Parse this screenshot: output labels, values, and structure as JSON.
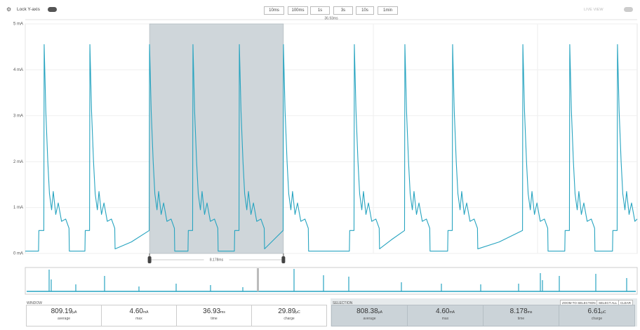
{
  "toolbar": {
    "lock_label": "Lock Y-axis",
    "zoom_buttons": [
      "10ms",
      "100ms",
      "1s",
      "3s",
      "10s",
      "1min"
    ],
    "live_view": "LIVE VIEW"
  },
  "chart_data": {
    "type": "line",
    "window_label": "36.93ms",
    "selection_label": "8.178ms",
    "color": "#27a4c0",
    "xlim": [
      0,
      36.93
    ],
    "ylim": [
      0,
      5
    ],
    "yticks": [
      {
        "value": 0,
        "label": "0 mA"
      },
      {
        "value": 1,
        "label": "1 mA"
      },
      {
        "value": 2,
        "label": "2 mA"
      },
      {
        "value": 3,
        "label": "3 mA"
      },
      {
        "value": 4,
        "label": "4 mA"
      },
      {
        "value": 5,
        "label": "5 mA"
      }
    ],
    "selection": [
      7.5,
      15.58
    ],
    "x": [
      0,
      0.8,
      0.82,
      1.12,
      1.14,
      1.24,
      1.36,
      1.46,
      1.59,
      1.69,
      1.84,
      1.99,
      2.19,
      2.44,
      2.64,
      2.66,
      3.6,
      3.62,
      3.88,
      3.9,
      4.0,
      4.12,
      4.22,
      4.35,
      4.45,
      4.6,
      4.75,
      4.95,
      5.2,
      5.4,
      5.42,
      6.4,
      7.48,
      7.5,
      7.6,
      7.72,
      7.82,
      7.95,
      8.05,
      8.2,
      8.35,
      8.55,
      8.8,
      9.0,
      9.02,
      9.82,
      9.84,
      10.1,
      10.12,
      10.22,
      10.34,
      10.44,
      10.57,
      10.67,
      10.82,
      10.97,
      11.17,
      11.42,
      11.62,
      11.64,
      12.62,
      12.64,
      12.9,
      12.92,
      13.02,
      13.14,
      13.24,
      13.37,
      13.47,
      13.62,
      13.77,
      13.97,
      14.22,
      14.42,
      14.44,
      15.0,
      15.56,
      15.58,
      15.68,
      15.8,
      15.9,
      16.03,
      16.13,
      16.28,
      16.43,
      16.63,
      16.88,
      17.08,
      17.1,
      19.56,
      19.58,
      19.84,
      19.86,
      19.96,
      20.08,
      20.18,
      20.31,
      20.41,
      20.56,
      20.71,
      20.91,
      21.16,
      21.36,
      21.38,
      22.1,
      22.89,
      22.91,
      23.01,
      23.13,
      23.23,
      23.36,
      23.46,
      23.61,
      23.76,
      23.96,
      24.21,
      24.41,
      24.43,
      25.49,
      25.51,
      25.77,
      25.79,
      25.89,
      26.01,
      26.11,
      26.24,
      26.34,
      26.49,
      26.64,
      26.84,
      27.09,
      27.29,
      27.31,
      28.6,
      30.01,
      30.03,
      30.13,
      30.25,
      30.35,
      30.48,
      30.58,
      30.73,
      30.88,
      31.08,
      31.33,
      31.53,
      31.55,
      32.56,
      32.58,
      32.84,
      32.86,
      32.96,
      33.08,
      33.18,
      33.31,
      33.41,
      33.56,
      33.71,
      33.91,
      34.16,
      34.36,
      34.38,
      35.44,
      35.46,
      35.72,
      35.74,
      35.84,
      35.96,
      36.06,
      36.19,
      36.29,
      36.44,
      36.59,
      36.79,
      36.93
    ],
    "values": [
      0.05,
      0.05,
      0.5,
      0.5,
      4.55,
      3.1,
      2.0,
      1.3,
      0.95,
      1.35,
      0.85,
      1.1,
      0.7,
      0.75,
      0.55,
      0.05,
      0.05,
      0.5,
      0.5,
      4.55,
      3.1,
      2.0,
      1.3,
      0.95,
      1.35,
      0.85,
      1.1,
      0.7,
      0.75,
      0.55,
      0.1,
      0.25,
      0.5,
      4.55,
      3.1,
      2.0,
      1.3,
      0.95,
      1.35,
      0.85,
      1.1,
      0.7,
      0.75,
      0.55,
      0.05,
      0.05,
      0.5,
      0.5,
      4.55,
      3.1,
      2.0,
      1.3,
      0.95,
      1.35,
      0.85,
      1.1,
      0.7,
      0.75,
      0.55,
      0.05,
      0.05,
      0.5,
      0.5,
      4.55,
      3.1,
      2.0,
      1.3,
      0.95,
      1.35,
      0.85,
      1.1,
      0.7,
      0.75,
      0.55,
      0.1,
      0.3,
      0.5,
      4.55,
      3.1,
      2.0,
      1.3,
      0.95,
      1.35,
      0.85,
      1.1,
      0.7,
      0.75,
      0.55,
      0.05,
      0.05,
      0.5,
      0.5,
      4.55,
      3.1,
      2.0,
      1.3,
      0.95,
      1.35,
      0.85,
      1.1,
      0.7,
      0.75,
      0.55,
      0.1,
      0.3,
      0.5,
      4.55,
      3.1,
      2.0,
      1.3,
      0.95,
      1.35,
      0.85,
      1.1,
      0.7,
      0.75,
      0.55,
      0.05,
      0.05,
      0.5,
      0.5,
      4.55,
      3.1,
      2.0,
      1.3,
      0.95,
      1.35,
      0.85,
      1.1,
      0.7,
      0.75,
      0.55,
      0.1,
      0.25,
      0.5,
      4.55,
      3.1,
      2.0,
      1.3,
      0.95,
      1.35,
      0.85,
      1.1,
      0.7,
      0.75,
      0.55,
      0.05,
      0.05,
      0.5,
      0.5,
      4.55,
      3.1,
      2.0,
      1.3,
      0.95,
      1.35,
      0.85,
      1.1,
      0.7,
      0.75,
      0.55,
      0.05,
      0.05,
      0.5,
      0.5,
      4.55,
      3.1,
      2.0,
      1.3,
      0.95,
      1.35,
      0.85,
      1.1,
      0.7,
      0.75
    ]
  },
  "window": {
    "title": "WINDOW",
    "stats": [
      {
        "value": "809.19",
        "unit": "µA",
        "label": "average"
      },
      {
        "value": "4.60",
        "unit": "mA",
        "label": "max"
      },
      {
        "value": "36.93",
        "unit": "ms",
        "label": "time"
      },
      {
        "value": "29.89",
        "unit": "µC",
        "label": "charge"
      }
    ]
  },
  "selection": {
    "title": "SELECTION",
    "buttons": [
      "ZOOM TO SELECTION",
      "SELECT ALL",
      "CLEAR"
    ],
    "stats": [
      {
        "value": "808.38",
        "unit": "µA",
        "label": "average"
      },
      {
        "value": "4.60",
        "unit": "mA",
        "label": "max"
      },
      {
        "value": "8.178",
        "unit": "ms",
        "label": "time"
      },
      {
        "value": "6.61",
        "unit": "µC",
        "label": "charge"
      }
    ]
  }
}
